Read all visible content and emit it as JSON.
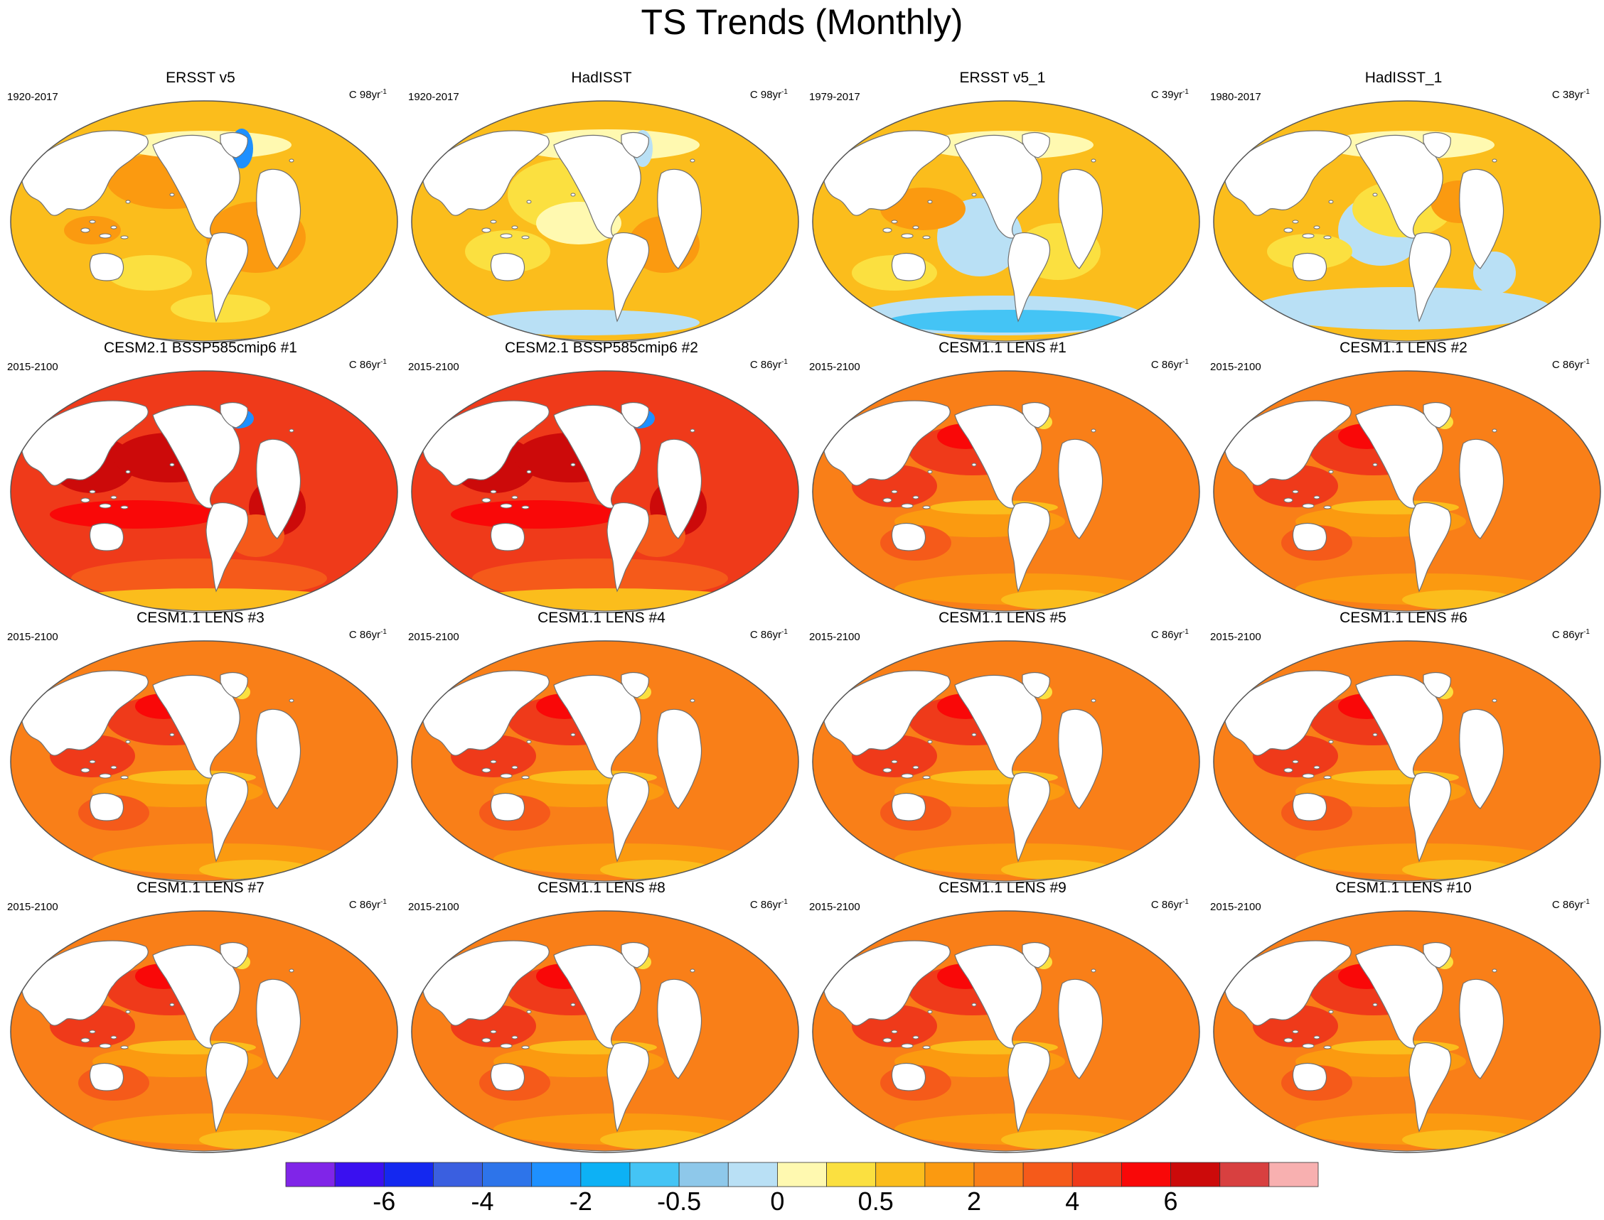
{
  "title": "TS Trends (Monthly)",
  "panels": [
    {
      "title": "ERSST v5",
      "years": "1920-2017",
      "units_prefix": "C",
      "units_value": "98yr",
      "units_exp": "-1",
      "style": "obs_warm"
    },
    {
      "title": "HadISST",
      "years": "1920-2017",
      "units_prefix": "C",
      "units_value": "98yr",
      "units_exp": "-1",
      "style": "obs_mixed"
    },
    {
      "title": "ERSST v5_1",
      "years": "1979-2017",
      "units_prefix": "C",
      "units_value": "39yr",
      "units_exp": "-1",
      "style": "obs_recent"
    },
    {
      "title": "HadISST_1",
      "years": "1980-2017",
      "units_prefix": "C",
      "units_value": "38yr",
      "units_exp": "-1",
      "style": "obs_recent2"
    },
    {
      "title": "CESM2.1 BSSP585cmip6 #1",
      "years": "2015-2100",
      "units_prefix": "C",
      "units_value": "86yr",
      "units_exp": "-1",
      "style": "cesm2"
    },
    {
      "title": "CESM2.1 BSSP585cmip6 #2",
      "years": "2015-2100",
      "units_prefix": "C",
      "units_value": "86yr",
      "units_exp": "-1",
      "style": "cesm2"
    },
    {
      "title": "CESM1.1 LENS #1",
      "years": "2015-2100",
      "units_prefix": "C",
      "units_value": "86yr",
      "units_exp": "-1",
      "style": "lens"
    },
    {
      "title": "CESM1.1 LENS #2",
      "years": "2015-2100",
      "units_prefix": "C",
      "units_value": "86yr",
      "units_exp": "-1",
      "style": "lens"
    },
    {
      "title": "CESM1.1 LENS #3",
      "years": "2015-2100",
      "units_prefix": "C",
      "units_value": "86yr",
      "units_exp": "-1",
      "style": "lens"
    },
    {
      "title": "CESM1.1 LENS #4",
      "years": "2015-2100",
      "units_prefix": "C",
      "units_value": "86yr",
      "units_exp": "-1",
      "style": "lens"
    },
    {
      "title": "CESM1.1 LENS #5",
      "years": "2015-2100",
      "units_prefix": "C",
      "units_value": "86yr",
      "units_exp": "-1",
      "style": "lens"
    },
    {
      "title": "CESM1.1 LENS #6",
      "years": "2015-2100",
      "units_prefix": "C",
      "units_value": "86yr",
      "units_exp": "-1",
      "style": "lens"
    },
    {
      "title": "CESM1.1 LENS #7",
      "years": "2015-2100",
      "units_prefix": "C",
      "units_value": "86yr",
      "units_exp": "-1",
      "style": "lens"
    },
    {
      "title": "CESM1.1 LENS #8",
      "years": "2015-2100",
      "units_prefix": "C",
      "units_value": "86yr",
      "units_exp": "-1",
      "style": "lens"
    },
    {
      "title": "CESM1.1 LENS #9",
      "years": "2015-2100",
      "units_prefix": "C",
      "units_value": "86yr",
      "units_exp": "-1",
      "style": "lens"
    },
    {
      "title": "CESM1.1 LENS #10",
      "years": "2015-2100",
      "units_prefix": "C",
      "units_value": "86yr",
      "units_exp": "-1",
      "style": "lens"
    }
  ],
  "colorbar": {
    "colors": [
      "#8025e8",
      "#3a10f0",
      "#1428f0",
      "#3a5fe0",
      "#2d74ea",
      "#1e90ff",
      "#0db1f5",
      "#44c4f5",
      "#8ec8ea",
      "#b9e0f5",
      "#fff9b0",
      "#fbe040",
      "#fbbd1c",
      "#fb9a10",
      "#f97f18",
      "#f55a1a",
      "#ef3a1a",
      "#f90808",
      "#cc0a0a",
      "#d84040",
      "#f8b0b0"
    ],
    "labels": [
      "-6",
      "-4",
      "-2",
      "-0.5",
      "0",
      "0.5",
      "2",
      "4",
      "6"
    ]
  },
  "palette": {
    "land": "#ffffff",
    "coast": "#707070",
    "pale_yellow": "#fff9b0",
    "yellow": "#fbe040",
    "light_orange": "#fbbd1c",
    "orange": "#fb9a10",
    "dark_orange": "#f97f18",
    "red_orange": "#f55a1a",
    "red": "#ef3a1a",
    "bright_red": "#f90808",
    "dark_red": "#cc0a0a",
    "light_blue": "#b9e0f5",
    "blue": "#44c4f5",
    "deep_blue": "#1e90ff"
  }
}
